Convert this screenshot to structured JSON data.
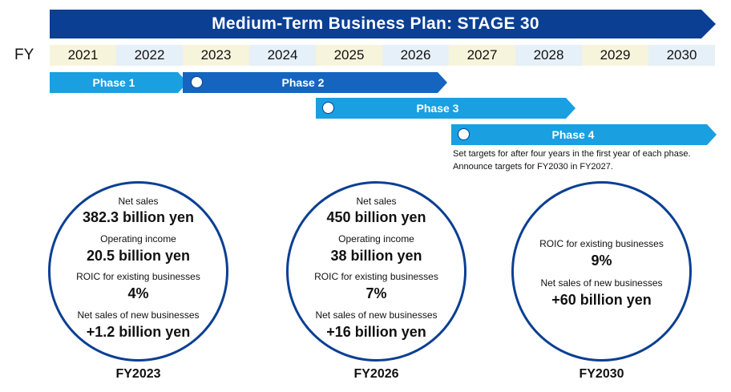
{
  "title": "Medium-Term Business Plan: STAGE 30",
  "fy_label": "FY",
  "years": [
    "2021",
    "2022",
    "2023",
    "2024",
    "2025",
    "2026",
    "2027",
    "2028",
    "2029",
    "2030"
  ],
  "phases": [
    {
      "label": "Phase 1"
    },
    {
      "label": "Phase 2"
    },
    {
      "label": "Phase 3"
    },
    {
      "label": "Phase 4"
    }
  ],
  "note": {
    "line1": "Set targets for after four years in the first year of each phase.",
    "line2": "Announce targets for FY2030 in FY2027."
  },
  "targets": [
    {
      "year": "FY2023",
      "net_sales_label": "Net sales",
      "net_sales": "382.3 billion yen",
      "op_income_label": "Operating income",
      "op_income": "20.5 billion yen",
      "roic_label": "ROIC for existing businesses",
      "roic": "4%",
      "new_biz_label": "Net sales of new businesses",
      "new_biz": "+1.2 billion yen"
    },
    {
      "year": "FY2026",
      "net_sales_label": "Net sales",
      "net_sales": "450 billion yen",
      "op_income_label": "Operating income",
      "op_income": "38 billion yen",
      "roic_label": "ROIC for existing businesses",
      "roic": "7%",
      "new_biz_label": "Net sales of new businesses",
      "new_biz": "+16 billion yen"
    },
    {
      "year": "FY2030",
      "roic_label": "ROIC for existing businesses",
      "roic": "9%",
      "new_biz_label": "Net sales of new businesses",
      "new_biz": "+60 billion yen"
    }
  ],
  "colors": {
    "dark_blue": "#0a3f93",
    "mid_blue": "#1565c0",
    "light_blue": "#1a9fe0",
    "year_yellow": "#f7f4dc",
    "year_blue": "#e6f0f8"
  }
}
